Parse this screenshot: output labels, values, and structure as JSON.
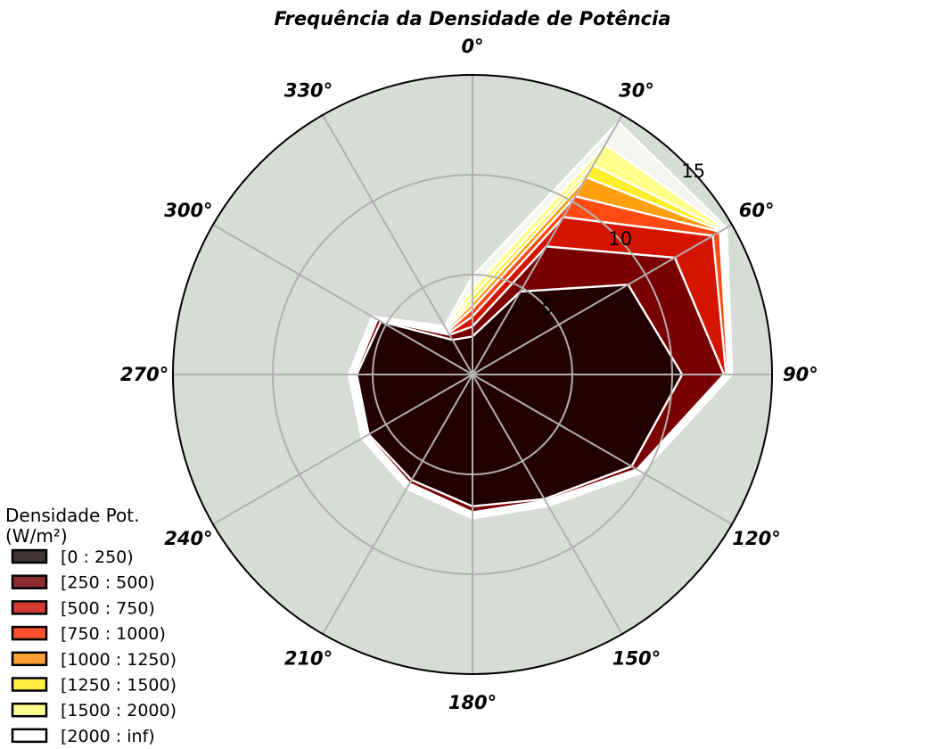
{
  "chart_data": {
    "type": "polar-stacked-area",
    "title": "Frequência da Densidade de Potência",
    "angles_deg": [
      0,
      30,
      60,
      90,
      120,
      150,
      180,
      210,
      240,
      270,
      300,
      330
    ],
    "angle_labels": [
      "0°",
      "30°",
      "60°",
      "90°",
      "120°",
      "150°",
      "180°",
      "210°",
      "240°",
      "270°",
      "300°",
      "330°"
    ],
    "radial_ticks": [
      5,
      10,
      15
    ],
    "rmax": 15,
    "legend": {
      "title_line1": "Densidade Pot.",
      "title_line2": "(W/m²)",
      "placement": "bottom-left"
    },
    "series": [
      {
        "name": "[0 : 250)",
        "color": "#230000",
        "swatch": "#3e3533",
        "values": [
          1.9,
          4.8,
          9.0,
          10.5,
          9.2,
          7.2,
          6.6,
          6.1,
          6.0,
          5.8,
          5.3,
          2.0
        ]
      },
      {
        "name": "[250 : 500)",
        "color": "#7a0000",
        "swatch": "#8b2e2e",
        "values": [
          2.4,
          7.4,
          11.7,
          12.6,
          9.5,
          7.3,
          6.9,
          6.3,
          6.1,
          5.9,
          5.5,
          2.3
        ]
      },
      {
        "name": "[500 : 750)",
        "color": "#d51400",
        "swatch": "#d43a32",
        "values": [
          2.9,
          9.1,
          13.9,
          12.7,
          9.6,
          7.4,
          7.0,
          6.4,
          6.2,
          6.0,
          5.6,
          2.4
        ]
      },
      {
        "name": "[750 : 1000)",
        "color": "#ff4a12",
        "swatch": "#ff5030",
        "values": [
          3.3,
          10.3,
          14.3,
          12.8,
          9.6,
          7.4,
          7.0,
          6.4,
          6.2,
          6.0,
          5.6,
          2.5
        ]
      },
      {
        "name": "[1000 : 1250)",
        "color": "#ff9f10",
        "swatch": "#ff9f30",
        "values": [
          3.6,
          11.4,
          14.4,
          12.8,
          9.7,
          7.5,
          7.1,
          6.5,
          6.3,
          6.1,
          5.7,
          2.6
        ]
      },
      {
        "name": "[1250 : 1500)",
        "color": "#ffee2a",
        "swatch": "#ffee40",
        "values": [
          3.9,
          12.1,
          14.5,
          12.9,
          9.7,
          7.5,
          7.1,
          6.5,
          6.3,
          6.1,
          5.7,
          2.6
        ]
      },
      {
        "name": "[1500 : 2000)",
        "color": "#ffff8c",
        "swatch": "#ffff90",
        "values": [
          4.3,
          13.3,
          14.6,
          12.9,
          9.8,
          7.6,
          7.2,
          6.6,
          6.4,
          6.2,
          5.8,
          2.7
        ]
      },
      {
        "name": "[2000 : inf)",
        "color": "#f5f6f2",
        "swatch": "#ffffff",
        "values": [
          4.9,
          14.6,
          14.7,
          13.0,
          9.8,
          7.6,
          7.2,
          6.6,
          6.4,
          6.2,
          5.8,
          2.8
        ]
      }
    ],
    "background_color": "#d8dcd6",
    "grid": true
  }
}
